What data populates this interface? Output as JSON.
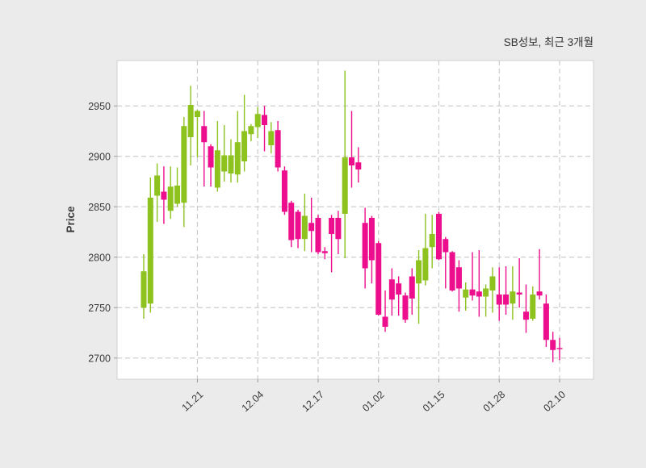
{
  "header": {
    "title": "SB성보, 최근 3개월"
  },
  "chart_data": {
    "type": "candlestick",
    "title": "SB성보, 최근 3개월",
    "xlabel": "",
    "ylabel": "Price",
    "legend": "none",
    "grid": "dashed-both-axes",
    "y_ticks": [
      2700,
      2750,
      2800,
      2850,
      2900,
      2950
    ],
    "ylim": [
      2679,
      2995
    ],
    "x_tick_labels": [
      "11.21",
      "12.04",
      "12.17",
      "01.02",
      "01.15",
      "01.28",
      "02.10"
    ],
    "x_tick_indices": [
      8,
      17,
      26,
      35,
      44,
      53,
      62
    ],
    "x_tick_rotation_deg": -42,
    "colors": {
      "up": "#8dc21f",
      "down": "#ed0e8e",
      "figure_bg": "#ebebeb",
      "plot_bg": "#ffffff",
      "grid": "#cbcbcb",
      "spine": "#d5d5d5",
      "tick": "#9a9a9a",
      "text": "#3a3a3a",
      "title_text": "#333333"
    },
    "candles_ohlc": [
      [
        2750,
        2803,
        2739,
        2786
      ],
      [
        2754,
        2879,
        2745,
        2859
      ],
      [
        2861,
        2893,
        2835,
        2881
      ],
      [
        2865,
        2890,
        2833,
        2857
      ],
      [
        2846,
        2890,
        2838,
        2870
      ],
      [
        2853,
        2889,
        2850,
        2871
      ],
      [
        2854,
        2939,
        2830,
        2930
      ],
      [
        2919,
        2970,
        2891,
        2951
      ],
      [
        2939,
        2946,
        2899,
        2945
      ],
      [
        2930,
        2945,
        2870,
        2914
      ],
      [
        2910,
        2912,
        2870,
        2889
      ],
      [
        2869,
        2935,
        2865,
        2906
      ],
      [
        2885,
        2931,
        2875,
        2901
      ],
      [
        2883,
        2917,
        2874,
        2901
      ],
      [
        2882,
        2945,
        2874,
        2914
      ],
      [
        2895,
        2961,
        2885,
        2925
      ],
      [
        2922,
        2932,
        2915,
        2930
      ],
      [
        2929,
        2949,
        2918,
        2942
      ],
      [
        2941,
        2950,
        2905,
        2931
      ],
      [
        2911,
        2934,
        2903,
        2925
      ],
      [
        2926,
        2935,
        2885,
        2889
      ],
      [
        2886,
        2890,
        2842,
        2845
      ],
      [
        2854,
        2856,
        2810,
        2817
      ],
      [
        2845,
        2847,
        2809,
        2818
      ],
      [
        2818,
        2863,
        2806,
        2841
      ],
      [
        2834,
        2859,
        2805,
        2826
      ],
      [
        2839,
        2842,
        2803,
        2805
      ],
      [
        2806,
        2810,
        2798,
        2804
      ],
      [
        2839,
        2842,
        2785,
        2823
      ],
      [
        2839,
        2846,
        2803,
        2818
      ],
      [
        2843,
        2985,
        2799,
        2899
      ],
      [
        2899,
        2945,
        2869,
        2891
      ],
      [
        2894,
        2909,
        2874,
        2887
      ],
      [
        2834,
        2849,
        2769,
        2789
      ],
      [
        2839,
        2841,
        2774,
        2797
      ],
      [
        2814,
        2816,
        2742,
        2743
      ],
      [
        2741,
        2767,
        2726,
        2731
      ],
      [
        2778,
        2789,
        2742,
        2758
      ],
      [
        2774,
        2781,
        2742,
        2763
      ],
      [
        2762,
        2765,
        2735,
        2738
      ],
      [
        2781,
        2789,
        2743,
        2759
      ],
      [
        2774,
        2807,
        2734,
        2797
      ],
      [
        2777,
        2843,
        2772,
        2809
      ],
      [
        2810,
        2842,
        2789,
        2823
      ],
      [
        2843,
        2845,
        2797,
        2798
      ],
      [
        2818,
        2820,
        2769,
        2805
      ],
      [
        2805,
        2806,
        2766,
        2767
      ],
      [
        2790,
        2797,
        2746,
        2769
      ],
      [
        2760,
        2775,
        2747,
        2768
      ],
      [
        2768,
        2805,
        2757,
        2762
      ],
      [
        2766,
        2807,
        2741,
        2761
      ],
      [
        2761,
        2773,
        2741,
        2769
      ],
      [
        2767,
        2790,
        2745,
        2781
      ],
      [
        2763,
        2790,
        2737,
        2753
      ],
      [
        2763,
        2791,
        2743,
        2753
      ],
      [
        2754,
        2791,
        2738,
        2766
      ],
      [
        2765,
        2799,
        2750,
        2763
      ],
      [
        2746,
        2773,
        2725,
        2738
      ],
      [
        2739,
        2771,
        2737,
        2763
      ],
      [
        2766,
        2808,
        2758,
        2762
      ],
      [
        2754,
        2763,
        2711,
        2718
      ],
      [
        2718,
        2726,
        2696,
        2708
      ],
      [
        2710,
        2720,
        2698,
        2709
      ]
    ]
  }
}
